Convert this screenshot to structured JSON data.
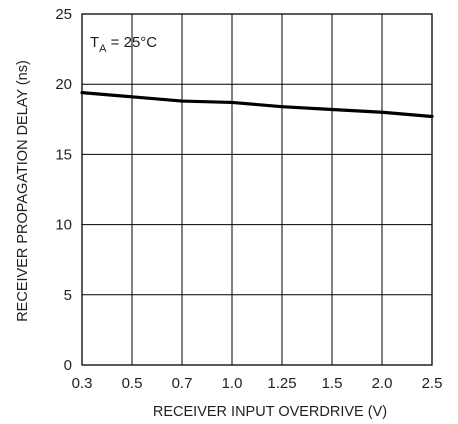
{
  "chart_data": {
    "type": "line",
    "xlabel": "RECEIVER INPUT OVERDRIVE (V)",
    "ylabel": "RECEIVER PROPAGATION DELAY (ns)",
    "x_ticks": [
      "0.3",
      "0.5",
      "0.7",
      "1.0",
      "1.25",
      "1.5",
      "2.0",
      "2.5"
    ],
    "y_ticks": [
      0,
      5,
      10,
      15,
      20,
      25
    ],
    "ylim": [
      0,
      25
    ],
    "x_scale": "categorical-evenly-spaced",
    "grid": true,
    "annotation": {
      "lhs_main": "T",
      "lhs_sub": "A",
      "rhs": " = 25°C"
    },
    "series": [
      {
        "x": [
          "0.3",
          "0.5",
          "0.7",
          "1.0",
          "1.25",
          "1.5",
          "2.0",
          "2.5"
        ],
        "values": [
          19.4,
          19.1,
          18.8,
          18.7,
          18.4,
          18.2,
          18.0,
          17.7
        ]
      }
    ],
    "colors": {
      "line": "#000000",
      "grid": "#000000",
      "text": "#231f20"
    }
  }
}
